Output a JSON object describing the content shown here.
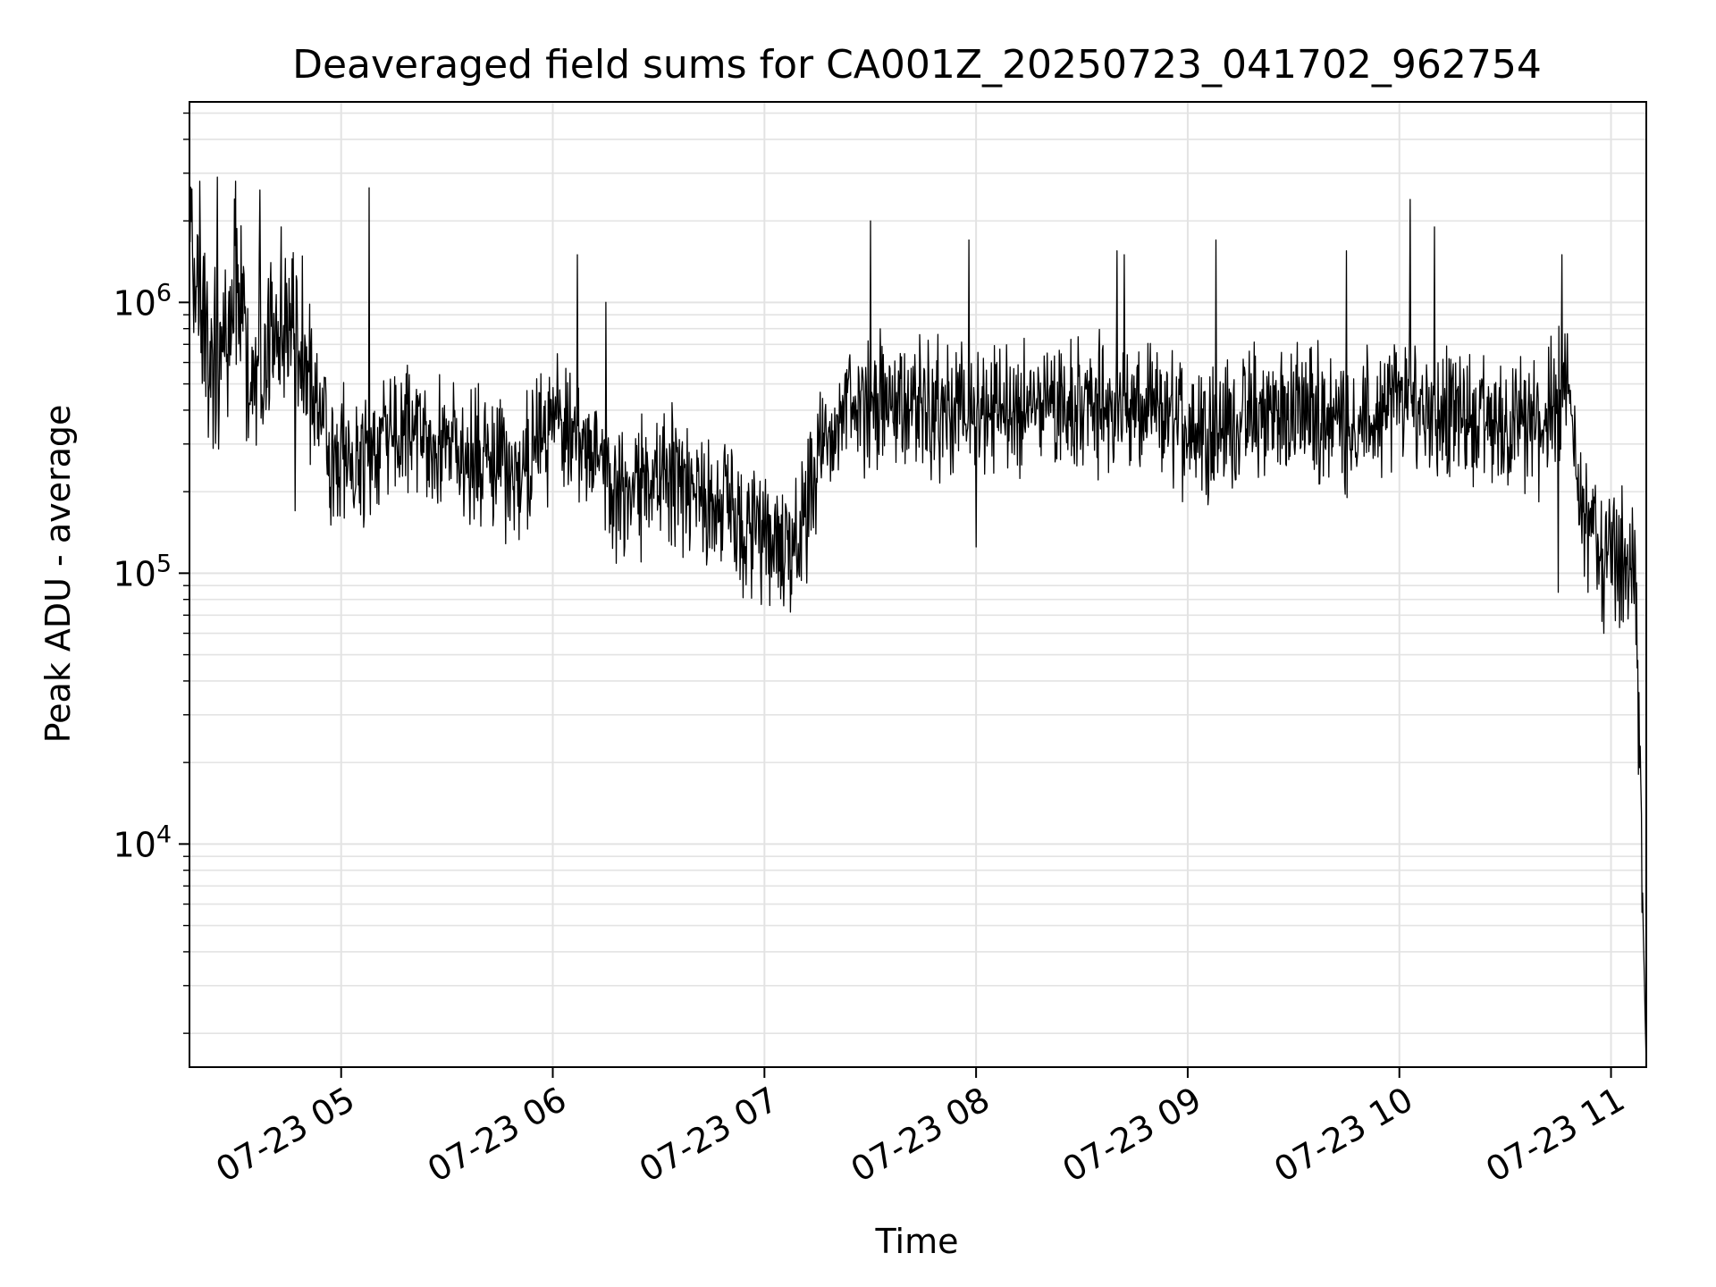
{
  "chart_data": {
    "type": "line",
    "title": "Deaveraged field sums for CA001Z_20250723_041702_962754",
    "xlabel": "Time",
    "ylabel": "Peak ADU - average",
    "x_range": [
      "2025-07-23 04:17",
      "2025-07-23 11:10"
    ],
    "x_ticks": [
      {
        "t": "2025-07-23 05:00",
        "label": "07-23 05"
      },
      {
        "t": "2025-07-23 06:00",
        "label": "07-23 06"
      },
      {
        "t": "2025-07-23 07:00",
        "label": "07-23 07"
      },
      {
        "t": "2025-07-23 08:00",
        "label": "07-23 08"
      },
      {
        "t": "2025-07-23 09:00",
        "label": "07-23 09"
      },
      {
        "t": "2025-07-23 10:00",
        "label": "07-23 10"
      },
      {
        "t": "2025-07-23 11:00",
        "label": "07-23 11"
      }
    ],
    "y_scale": "log",
    "ylim": [
      1500,
      5500000
    ],
    "y_ticks": [
      {
        "value": 10000,
        "base": "10",
        "exp": "4"
      },
      {
        "value": 100000,
        "base": "10",
        "exp": "5"
      },
      {
        "value": 1000000,
        "base": "10",
        "exp": "6"
      }
    ],
    "grid": true,
    "line_color": "#000000",
    "grid_color": "#e3e3e3",
    "series": [
      {
        "values": [
          [
            "2025-07-23 04:17",
            1900000
          ],
          [
            "2025-07-23 04:20",
            800000
          ],
          [
            "2025-07-23 04:25",
            600000
          ],
          [
            "2025-07-23 04:30",
            1200000
          ],
          [
            "2025-07-23 04:35",
            550000
          ],
          [
            "2025-07-23 04:40",
            700000
          ],
          [
            "2025-07-23 04:45",
            800000
          ],
          [
            "2025-07-23 04:50",
            650000
          ],
          [
            "2025-07-23 04:53",
            400000
          ],
          [
            "2025-07-23 04:57",
            290000
          ],
          [
            "2025-07-23 05:00",
            260000
          ],
          [
            "2025-07-23 05:05",
            250000
          ],
          [
            "2025-07-23 05:10",
            300000
          ],
          [
            "2025-07-23 05:20",
            330000
          ],
          [
            "2025-07-23 05:30",
            300000
          ],
          [
            "2025-07-23 05:40",
            260000
          ],
          [
            "2025-07-23 05:50",
            220000
          ],
          [
            "2025-07-23 06:00",
            350000
          ],
          [
            "2025-07-23 06:10",
            300000
          ],
          [
            "2025-07-23 06:20",
            180000
          ],
          [
            "2025-07-23 06:30",
            250000
          ],
          [
            "2025-07-23 06:40",
            200000
          ],
          [
            "2025-07-23 06:50",
            170000
          ],
          [
            "2025-07-23 07:00",
            120000
          ],
          [
            "2025-07-23 07:10",
            140000
          ],
          [
            "2025-07-23 07:15",
            250000
          ],
          [
            "2025-07-23 07:20",
            350000
          ],
          [
            "2025-07-23 07:30",
            450000
          ],
          [
            "2025-07-23 07:40",
            420000
          ],
          [
            "2025-07-23 07:50",
            400000
          ],
          [
            "2025-07-23 08:00",
            380000
          ],
          [
            "2025-07-23 08:10",
            400000
          ],
          [
            "2025-07-23 08:20",
            450000
          ],
          [
            "2025-07-23 08:30",
            420000
          ],
          [
            "2025-07-23 08:40",
            400000
          ],
          [
            "2025-07-23 08:50",
            380000
          ],
          [
            "2025-07-23 09:00",
            360000
          ],
          [
            "2025-07-23 09:10",
            350000
          ],
          [
            "2025-07-23 09:20",
            380000
          ],
          [
            "2025-07-23 09:30",
            400000
          ],
          [
            "2025-07-23 09:40",
            380000
          ],
          [
            "2025-07-23 09:50",
            350000
          ],
          [
            "2025-07-23 10:00",
            450000
          ],
          [
            "2025-07-23 10:10",
            400000
          ],
          [
            "2025-07-23 10:20",
            380000
          ],
          [
            "2025-07-23 10:30",
            350000
          ],
          [
            "2025-07-23 10:40",
            350000
          ],
          [
            "2025-07-23 10:47",
            500000
          ],
          [
            "2025-07-23 10:50",
            300000
          ],
          [
            "2025-07-23 10:53",
            150000
          ],
          [
            "2025-07-23 10:57",
            130000
          ],
          [
            "2025-07-23 11:00",
            110000
          ],
          [
            "2025-07-23 11:03",
            120000
          ],
          [
            "2025-07-23 11:07",
            90000
          ],
          [
            "2025-07-23 11:10",
            1500
          ]
        ],
        "peaks": [
          [
            "2025-07-23 04:20",
            2800000
          ],
          [
            "2025-07-23 04:25",
            2900000
          ],
          [
            "2025-07-23 04:30",
            2800000
          ],
          [
            "2025-07-23 04:37",
            2600000
          ],
          [
            "2025-07-23 04:43",
            1900000
          ],
          [
            "2025-07-23 05:08",
            2650000
          ],
          [
            "2025-07-23 06:07",
            1500000
          ],
          [
            "2025-07-23 06:15",
            1000000
          ],
          [
            "2025-07-23 07:30",
            2000000
          ],
          [
            "2025-07-23 07:58",
            1700000
          ],
          [
            "2025-07-23 08:40",
            1550000
          ],
          [
            "2025-07-23 08:42",
            1500000
          ],
          [
            "2025-07-23 09:08",
            1700000
          ],
          [
            "2025-07-23 09:45",
            1550000
          ],
          [
            "2025-07-23 10:03",
            2400000
          ],
          [
            "2025-07-23 10:10",
            1900000
          ],
          [
            "2025-07-23 10:46",
            1500000
          ]
        ],
        "troughs": [
          [
            "2025-07-23 04:47",
            170000
          ],
          [
            "2025-07-23 06:25",
            110000
          ],
          [
            "2025-07-23 07:05",
            90000
          ],
          [
            "2025-07-23 07:12",
            92000
          ],
          [
            "2025-07-23 08:00",
            125000
          ],
          [
            "2025-07-23 10:45",
            85000
          ],
          [
            "2025-07-23 10:58",
            60000
          ],
          [
            "2025-07-23 11:03",
            67000
          ]
        ]
      }
    ]
  }
}
